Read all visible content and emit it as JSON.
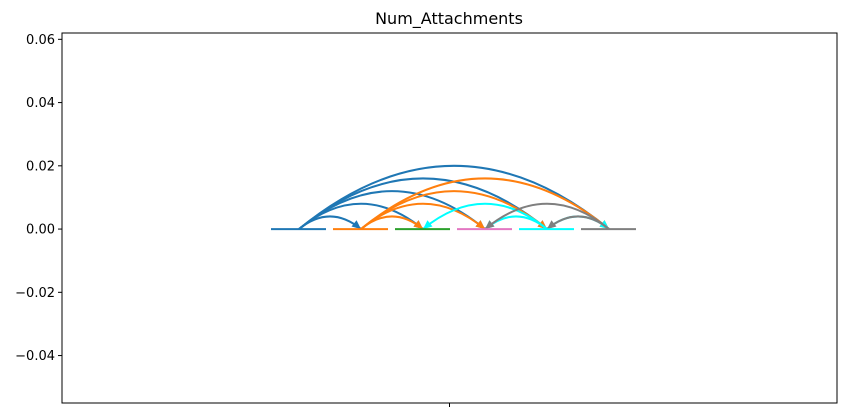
{
  "chart_data": {
    "type": "arc",
    "title": "Num_Attachments",
    "xlabel": "",
    "ylabel": "",
    "ylim": [
      -0.055,
      0.062
    ],
    "y_ticks": [
      -0.04,
      -0.02,
      0.0,
      0.02,
      0.04,
      0.06
    ],
    "y_tick_labels": [
      "−0.04",
      "−0.02",
      "0.00",
      "0.02",
      "0.04",
      "0.06"
    ],
    "x_ticks": [
      ""
    ],
    "grid": false,
    "nodes": [
      {
        "index": 0,
        "color": "#1f77b4"
      },
      {
        "index": 1,
        "color": "#ff7f0e"
      },
      {
        "index": 2,
        "color": "#2ca02c"
      },
      {
        "index": 3,
        "color": "#e377c2"
      },
      {
        "index": 4,
        "color": "#00ffff"
      },
      {
        "index": 5,
        "color": "#7f7f7f"
      }
    ],
    "edges": [
      {
        "from": 0,
        "to": 1,
        "color": "#1f77b4"
      },
      {
        "from": 0,
        "to": 2,
        "color": "#1f77b4"
      },
      {
        "from": 0,
        "to": 3,
        "color": "#1f77b4"
      },
      {
        "from": 0,
        "to": 4,
        "color": "#1f77b4"
      },
      {
        "from": 0,
        "to": 5,
        "color": "#1f77b4"
      },
      {
        "from": 1,
        "to": 2,
        "color": "#ff7f0e"
      },
      {
        "from": 1,
        "to": 3,
        "color": "#ff7f0e"
      },
      {
        "from": 1,
        "to": 4,
        "color": "#ff7f0e"
      },
      {
        "from": 1,
        "to": 5,
        "color": "#ff7f0e"
      },
      {
        "from": 4,
        "to": 2,
        "color": "#00ffff"
      },
      {
        "from": 4,
        "to": 3,
        "color": "#00ffff"
      },
      {
        "from": 4,
        "to": 5,
        "color": "#00ffff"
      },
      {
        "from": 5,
        "to": 3,
        "color": "#7f7f7f"
      },
      {
        "from": 5,
        "to": 4,
        "color": "#7f7f7f"
      }
    ],
    "arc_height_per_step": 0.004
  }
}
